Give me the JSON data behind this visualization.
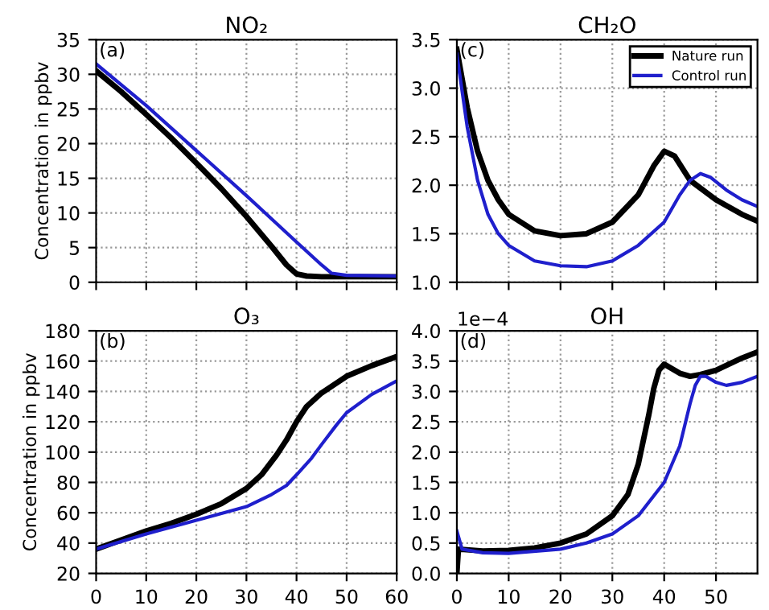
{
  "chart_data": [
    {
      "type": "line",
      "title": "NO₂",
      "ylabel": "Concentration in ppbv",
      "annotations": [
        "(a)"
      ],
      "xlim": [
        0,
        60
      ],
      "xticks": [
        0,
        10,
        20,
        30,
        40,
        50,
        60
      ],
      "ylim": [
        0,
        35
      ],
      "yticks": [
        0,
        5,
        10,
        15,
        20,
        25,
        30,
        35
      ],
      "grid": true,
      "tick_labels": "y",
      "legend": false,
      "line_style": "solid",
      "series": [
        {
          "color": "#000000",
          "x": [
            0,
            5,
            10,
            15,
            20,
            25,
            30,
            35,
            38,
            40,
            42,
            45,
            50,
            60
          ],
          "values": [
            30.5,
            27.5,
            24.2,
            20.8,
            17.2,
            13.5,
            9.5,
            5.2,
            2.5,
            1.2,
            0.9,
            0.8,
            0.8,
            0.8
          ]
        },
        {
          "color": "#1f1fcc",
          "x": [
            0,
            10,
            20,
            30,
            40,
            45,
            47,
            50,
            60
          ],
          "values": [
            31.5,
            25.5,
            19,
            12.5,
            5.8,
            2.5,
            1.3,
            1.0,
            0.9
          ]
        }
      ]
    },
    {
      "type": "line",
      "title": "CH₂O",
      "annotations": [
        "(c)"
      ],
      "xlim": [
        0,
        58
      ],
      "xticks": [
        0,
        10,
        20,
        30,
        40,
        50
      ],
      "ylim": [
        1.0,
        3.5
      ],
      "yticks": [
        {
          "value": 1.0,
          "label": "1.0"
        },
        1.5,
        {
          "value": 2.0,
          "label": "2.0"
        },
        2.5,
        {
          "value": 3.0,
          "label": "3.0"
        },
        3.5
      ],
      "grid": true,
      "tick_labels": "y",
      "legend": "top right",
      "line_style": "solid",
      "series": [
        {
          "name": "Nature run",
          "color": "#000000",
          "x": [
            0,
            2,
            4,
            6,
            8,
            10,
            15,
            20,
            25,
            30,
            35,
            38,
            40,
            42,
            45,
            50,
            55,
            58
          ],
          "values": [
            3.4,
            2.8,
            2.35,
            2.05,
            1.85,
            1.7,
            1.53,
            1.48,
            1.5,
            1.62,
            1.9,
            2.2,
            2.35,
            2.3,
            2.05,
            1.85,
            1.7,
            1.63
          ]
        },
        {
          "name": "Control run",
          "color": "#1f1fcc",
          "x": [
            0,
            2,
            4,
            6,
            8,
            10,
            15,
            20,
            25,
            30,
            35,
            40,
            43,
            45,
            47,
            49,
            52,
            55,
            58
          ],
          "values": [
            3.35,
            2.6,
            2.05,
            1.7,
            1.5,
            1.38,
            1.22,
            1.17,
            1.16,
            1.22,
            1.38,
            1.62,
            1.9,
            2.05,
            2.12,
            2.08,
            1.95,
            1.85,
            1.78
          ]
        }
      ]
    },
    {
      "type": "line",
      "title": "O₃",
      "ylabel": "Concentration in ppbv",
      "annotations": [
        "(b)"
      ],
      "xlim": [
        0,
        60
      ],
      "xticks": [
        0,
        10,
        20,
        30,
        40,
        50,
        60
      ],
      "ylim": [
        20,
        180
      ],
      "yticks": [
        20,
        40,
        60,
        80,
        100,
        120,
        140,
        160,
        180
      ],
      "grid": true,
      "legend": false,
      "line_style": "solid",
      "series": [
        {
          "color": "#000000",
          "x": [
            0,
            5,
            10,
            15,
            20,
            25,
            30,
            33,
            36,
            38,
            40,
            42,
            45,
            50,
            55,
            60
          ],
          "values": [
            36,
            42,
            48,
            53,
            59,
            66,
            76,
            85,
            98,
            108,
            120,
            130,
            139,
            150,
            157,
            163
          ]
        },
        {
          "color": "#1f1fcc",
          "x": [
            0,
            10,
            20,
            30,
            35,
            38,
            40,
            43,
            45,
            48,
            50,
            55,
            60
          ],
          "values": [
            36,
            46,
            55,
            64,
            72,
            78,
            85,
            96,
            105,
            118,
            126,
            138,
            147
          ]
        }
      ]
    },
    {
      "type": "line",
      "title": "OH",
      "annotations": [
        "(d)",
        "1e−4"
      ],
      "xlim": [
        0,
        58
      ],
      "xticks": [
        0,
        10,
        20,
        30,
        40,
        50
      ],
      "ylim": [
        0.0,
        4.0
      ],
      "yticks": [
        {
          "value": 0.0,
          "label": "0.0"
        },
        0.5,
        {
          "value": 1.0,
          "label": "1.0"
        },
        1.5,
        {
          "value": 2.0,
          "label": "2.0"
        },
        2.5,
        {
          "value": 3.0,
          "label": "3.0"
        },
        3.5,
        {
          "value": 4.0,
          "label": "4.0"
        }
      ],
      "grid": true,
      "legend": false,
      "line_style": "solid",
      "series": [
        {
          "color": "#000000",
          "x": [
            0,
            0.3,
            5,
            10,
            15,
            20,
            25,
            30,
            33,
            35,
            37,
            38,
            39,
            40,
            41,
            43,
            45,
            47,
            50,
            55,
            58
          ],
          "values": [
            0.0,
            0.4,
            0.37,
            0.38,
            0.42,
            0.5,
            0.65,
            0.95,
            1.3,
            1.8,
            2.6,
            3.05,
            3.35,
            3.45,
            3.4,
            3.3,
            3.25,
            3.28,
            3.35,
            3.55,
            3.65
          ]
        },
        {
          "color": "#1f1fcc",
          "x": [
            0,
            1,
            5,
            10,
            20,
            25,
            30,
            35,
            40,
            43,
            45,
            46,
            47,
            48,
            50,
            52,
            55,
            58
          ],
          "values": [
            0.7,
            0.4,
            0.34,
            0.33,
            0.4,
            0.5,
            0.65,
            0.95,
            1.5,
            2.1,
            2.8,
            3.1,
            3.25,
            3.25,
            3.15,
            3.1,
            3.15,
            3.25
          ]
        }
      ]
    }
  ]
}
